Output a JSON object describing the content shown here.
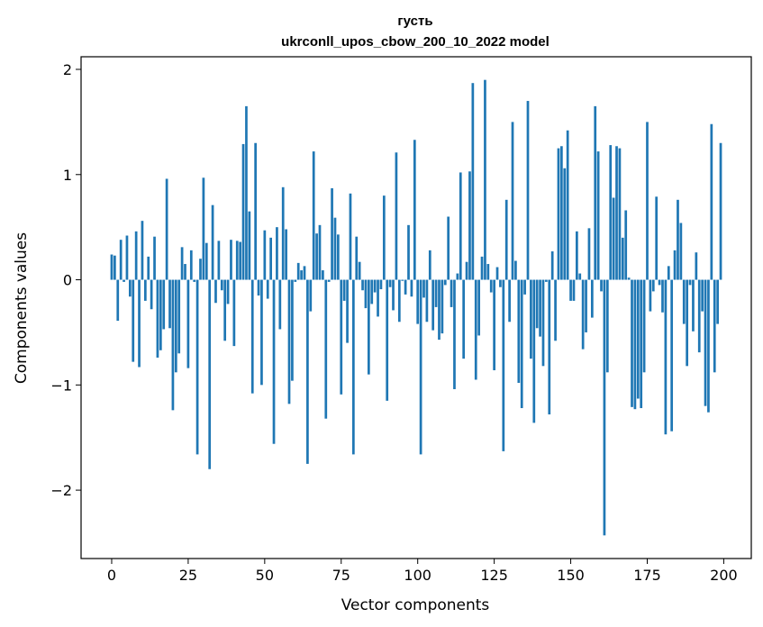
{
  "chart_data": {
    "type": "bar",
    "title": "густь",
    "subtitle": "ukrconll_upos_cbow_200_10_2022 model",
    "xlabel": "Vector components",
    "ylabel": "Components values",
    "xlim": [
      -10,
      209
    ],
    "ylim": [
      -2.65,
      2.12
    ],
    "xticks": [
      0,
      25,
      50,
      75,
      100,
      125,
      150,
      175,
      200
    ],
    "yticks": [
      -2,
      -1,
      0,
      1,
      2
    ],
    "ytick_labels": [
      "−2",
      "−1",
      "0",
      "1",
      "2"
    ],
    "bar_color": "#1f77b4",
    "grid": false,
    "x": [
      0,
      1,
      2,
      3,
      4,
      5,
      6,
      7,
      8,
      9,
      10,
      11,
      12,
      13,
      14,
      15,
      16,
      17,
      18,
      19,
      20,
      21,
      22,
      23,
      24,
      25,
      26,
      27,
      28,
      29,
      30,
      31,
      32,
      33,
      34,
      35,
      36,
      37,
      38,
      39,
      40,
      41,
      42,
      43,
      44,
      45,
      46,
      47,
      48,
      49,
      50,
      51,
      52,
      53,
      54,
      55,
      56,
      57,
      58,
      59,
      60,
      61,
      62,
      63,
      64,
      65,
      66,
      67,
      68,
      69,
      70,
      71,
      72,
      73,
      74,
      75,
      76,
      77,
      78,
      79,
      80,
      81,
      82,
      83,
      84,
      85,
      86,
      87,
      88,
      89,
      90,
      91,
      92,
      93,
      94,
      95,
      96,
      97,
      98,
      99,
      100,
      101,
      102,
      103,
      104,
      105,
      106,
      107,
      108,
      109,
      110,
      111,
      112,
      113,
      114,
      115,
      116,
      117,
      118,
      119,
      120,
      121,
      122,
      123,
      124,
      125,
      126,
      127,
      128,
      129,
      130,
      131,
      132,
      133,
      134,
      135,
      136,
      137,
      138,
      139,
      140,
      141,
      142,
      143,
      144,
      145,
      146,
      147,
      148,
      149,
      150,
      151,
      152,
      153,
      154,
      155,
      156,
      157,
      158,
      159,
      160,
      161,
      162,
      163,
      164,
      165,
      166,
      167,
      168,
      169,
      170,
      171,
      172,
      173,
      174,
      175,
      176,
      177,
      178,
      179,
      180,
      181,
      182,
      183,
      184,
      185,
      186,
      187,
      188,
      189,
      190,
      191,
      192,
      193,
      194,
      195,
      196,
      197,
      198,
      199
    ],
    "values": [
      0.24,
      0.23,
      -0.39,
      0.38,
      -0.02,
      0.42,
      -0.16,
      -0.78,
      0.46,
      -0.83,
      0.56,
      -0.2,
      0.22,
      -0.28,
      0.41,
      -0.74,
      -0.67,
      -0.47,
      0.96,
      -0.46,
      -1.24,
      -0.88,
      -0.7,
      0.31,
      0.15,
      -0.84,
      0.28,
      -0.02,
      -1.66,
      0.2,
      0.97,
      0.35,
      -1.8,
      0.71,
      -0.22,
      0.37,
      -0.1,
      -0.58,
      -0.23,
      0.38,
      -0.63,
      0.37,
      0.36,
      1.29,
      1.65,
      0.65,
      -1.08,
      1.3,
      -0.15,
      -1.0,
      0.47,
      -0.18,
      0.4,
      -1.56,
      0.5,
      -0.47,
      0.88,
      0.48,
      -1.18,
      -0.96,
      -0.02,
      0.16,
      0.09,
      0.13,
      -1.75,
      -0.3,
      1.22,
      0.44,
      0.52,
      0.09,
      -1.32,
      -0.02,
      0.87,
      0.59,
      0.43,
      -1.09,
      -0.2,
      -0.6,
      0.82,
      -1.66,
      0.41,
      0.17,
      -0.1,
      -0.27,
      -0.9,
      -0.23,
      -0.12,
      -0.35,
      -0.09,
      0.8,
      -1.15,
      -0.07,
      -0.29,
      1.21,
      -0.4,
      -0.01,
      -0.14,
      0.52,
      -0.16,
      1.33,
      -0.42,
      -1.66,
      -0.17,
      -0.4,
      0.28,
      -0.48,
      -0.26,
      -0.57,
      -0.51,
      -0.05,
      0.6,
      -0.26,
      -1.04,
      0.06,
      1.02,
      -0.75,
      0.17,
      1.03,
      1.87,
      -0.95,
      -0.53,
      0.22,
      1.9,
      0.15,
      -0.12,
      -0.86,
      0.12,
      -0.07,
      -1.63,
      0.76,
      -0.4,
      1.5,
      0.18,
      -0.98,
      -1.22,
      -0.14,
      1.7,
      -0.75,
      -1.36,
      -0.46,
      -0.54,
      -0.82,
      -0.02,
      -1.28,
      0.27,
      -0.58,
      1.25,
      1.27,
      1.06,
      1.42,
      -0.2,
      -0.2,
      0.46,
      0.06,
      -0.66,
      -0.5,
      0.49,
      -0.36,
      1.65,
      1.22,
      -0.11,
      -2.43,
      -0.88,
      1.28,
      0.78,
      1.27,
      1.25,
      0.4,
      0.66,
      0.02,
      -1.21,
      -1.23,
      -1.13,
      -1.22,
      -0.88,
      1.5,
      -0.3,
      -0.11,
      0.79,
      -0.05,
      -0.31,
      -1.47,
      0.13,
      -1.44,
      0.28,
      0.76,
      0.54,
      -0.42,
      -0.82,
      -0.05,
      -0.49,
      0.26,
      -0.69,
      -0.3,
      -1.2,
      -1.26,
      1.48,
      -0.88,
      -0.42,
      1.3
    ]
  }
}
